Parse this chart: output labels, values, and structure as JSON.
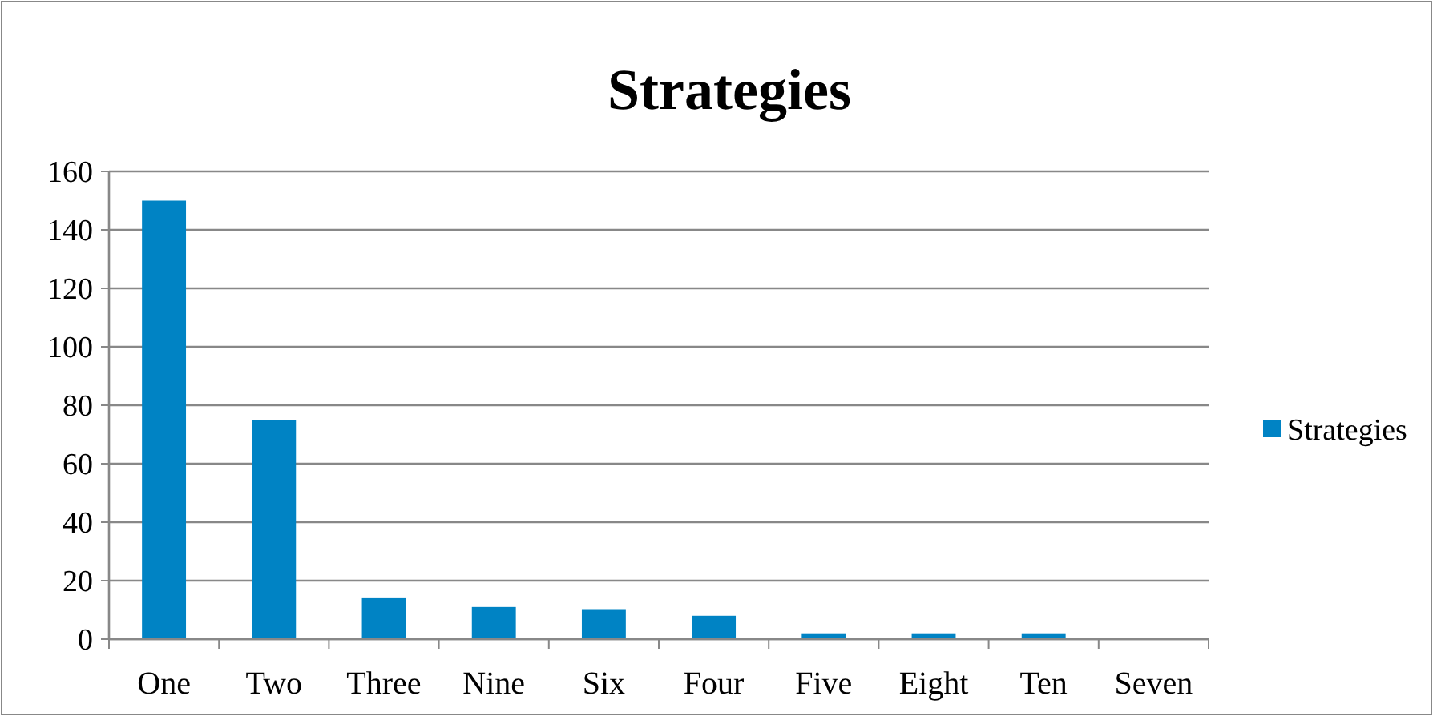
{
  "chart_data": {
    "type": "bar",
    "title": "Strategies",
    "categories": [
      "One",
      "Two",
      "Three",
      "Nine",
      "Six",
      "Four",
      "Five",
      "Eight",
      "Ten",
      "Seven"
    ],
    "series": [
      {
        "name": "Strategies",
        "color": "#0083c4",
        "values": [
          150,
          75,
          14,
          11,
          10,
          8,
          2,
          2,
          2,
          0
        ]
      }
    ],
    "ylim": [
      0,
      160
    ],
    "yticks": [
      0,
      20,
      40,
      60,
      80,
      100,
      120,
      140,
      160
    ],
    "grid": "y",
    "legend": "right"
  }
}
